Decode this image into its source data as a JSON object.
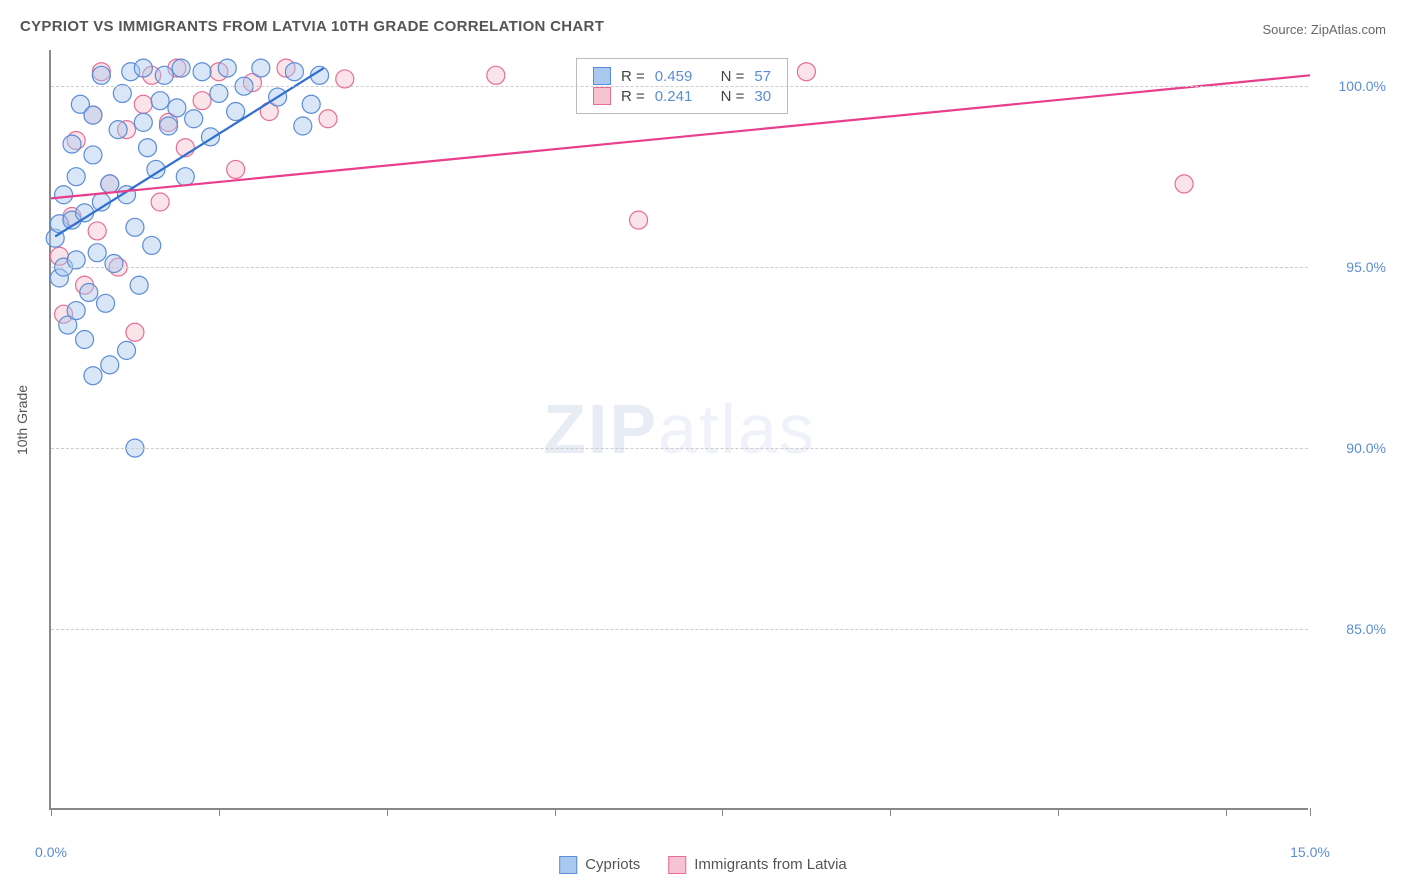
{
  "title": "CYPRIOT VS IMMIGRANTS FROM LATVIA 10TH GRADE CORRELATION CHART",
  "source_label": "Source: ZipAtlas.com",
  "ylabel": "10th Grade",
  "watermark_bold": "ZIP",
  "watermark_light": "atlas",
  "chart": {
    "type": "scatter",
    "xlim": [
      0,
      15
    ],
    "ylim": [
      80,
      101
    ],
    "x_ticks": [
      0,
      2,
      4,
      6,
      8,
      10,
      12,
      14,
      15
    ],
    "x_tick_labels": {
      "0": "0.0%",
      "15": "15.0%"
    },
    "y_ticks": [
      85,
      90,
      95,
      100
    ],
    "y_tick_labels": {
      "85": "85.0%",
      "90": "90.0%",
      "95": "95.0%",
      "100": "100.0%"
    },
    "background_color": "#ffffff",
    "grid_color": "#cccccc",
    "axis_color": "#888888",
    "tick_label_color": "#5b8dd6",
    "marker_radius": 9,
    "marker_opacity": 0.45,
    "line_width": 2.2
  },
  "series": [
    {
      "key": "cypriots",
      "label": "Cypriots",
      "fill": "#a9c8ef",
      "stroke": "#5b8dd6",
      "line_color": "#2f6fd0",
      "R": "0.459",
      "N": "57",
      "trend": {
        "x1": 0.05,
        "y1": 95.85,
        "x2": 3.25,
        "y2": 100.5
      },
      "points": [
        [
          0.05,
          95.8
        ],
        [
          0.1,
          96.2
        ],
        [
          0.1,
          94.7
        ],
        [
          0.15,
          95.0
        ],
        [
          0.15,
          97.0
        ],
        [
          0.2,
          93.4
        ],
        [
          0.25,
          96.3
        ],
        [
          0.25,
          98.4
        ],
        [
          0.3,
          95.2
        ],
        [
          0.3,
          97.5
        ],
        [
          0.35,
          99.5
        ],
        [
          0.4,
          96.5
        ],
        [
          0.4,
          93.0
        ],
        [
          0.45,
          94.3
        ],
        [
          0.5,
          98.1
        ],
        [
          0.5,
          99.2
        ],
        [
          0.55,
          95.4
        ],
        [
          0.6,
          96.8
        ],
        [
          0.6,
          100.3
        ],
        [
          0.65,
          94.0
        ],
        [
          0.7,
          92.3
        ],
        [
          0.7,
          97.3
        ],
        [
          0.75,
          95.1
        ],
        [
          0.8,
          98.8
        ],
        [
          0.85,
          99.8
        ],
        [
          0.9,
          97.0
        ],
        [
          0.9,
          92.7
        ],
        [
          0.95,
          100.4
        ],
        [
          1.0,
          96.1
        ],
        [
          1.05,
          94.5
        ],
        [
          1.1,
          99.0
        ],
        [
          1.1,
          100.5
        ],
        [
          1.15,
          98.3
        ],
        [
          1.2,
          95.6
        ],
        [
          1.25,
          97.7
        ],
        [
          1.3,
          99.6
        ],
        [
          1.35,
          100.3
        ],
        [
          1.4,
          98.9
        ],
        [
          1.5,
          99.4
        ],
        [
          1.55,
          100.5
        ],
        [
          1.6,
          97.5
        ],
        [
          1.7,
          99.1
        ],
        [
          1.8,
          100.4
        ],
        [
          1.9,
          98.6
        ],
        [
          2.0,
          99.8
        ],
        [
          2.1,
          100.5
        ],
        [
          2.2,
          99.3
        ],
        [
          2.3,
          100.0
        ],
        [
          2.5,
          100.5
        ],
        [
          2.7,
          99.7
        ],
        [
          2.9,
          100.4
        ],
        [
          3.0,
          98.9
        ],
        [
          3.1,
          99.5
        ],
        [
          3.2,
          100.3
        ],
        [
          1.0,
          90.0
        ],
        [
          0.5,
          92.0
        ],
        [
          0.3,
          93.8
        ]
      ]
    },
    {
      "key": "latvia",
      "label": "Immigrants from Latvia",
      "fill": "#f5c3d1",
      "stroke": "#e86d94",
      "line_color": "#e83e8c",
      "R": "0.241",
      "N": "30",
      "trend": {
        "x1": 0.0,
        "y1": 96.9,
        "x2": 15.0,
        "y2": 100.3
      },
      "points": [
        [
          0.1,
          95.3
        ],
        [
          0.15,
          93.7
        ],
        [
          0.25,
          96.4
        ],
        [
          0.3,
          98.5
        ],
        [
          0.4,
          94.5
        ],
        [
          0.5,
          99.2
        ],
        [
          0.55,
          96.0
        ],
        [
          0.6,
          100.4
        ],
        [
          0.7,
          97.3
        ],
        [
          0.8,
          95.0
        ],
        [
          0.9,
          98.8
        ],
        [
          1.0,
          93.2
        ],
        [
          1.1,
          99.5
        ],
        [
          1.2,
          100.3
        ],
        [
          1.3,
          96.8
        ],
        [
          1.4,
          99.0
        ],
        [
          1.5,
          100.5
        ],
        [
          1.6,
          98.3
        ],
        [
          1.8,
          99.6
        ],
        [
          2.0,
          100.4
        ],
        [
          2.2,
          97.7
        ],
        [
          2.4,
          100.1
        ],
        [
          2.6,
          99.3
        ],
        [
          2.8,
          100.5
        ],
        [
          3.3,
          99.1
        ],
        [
          3.5,
          100.2
        ],
        [
          5.3,
          100.3
        ],
        [
          7.0,
          96.3
        ],
        [
          9.0,
          100.4
        ],
        [
          13.5,
          97.3
        ]
      ]
    }
  ],
  "legend": {
    "r_label": "R =",
    "n_label": "N ="
  }
}
